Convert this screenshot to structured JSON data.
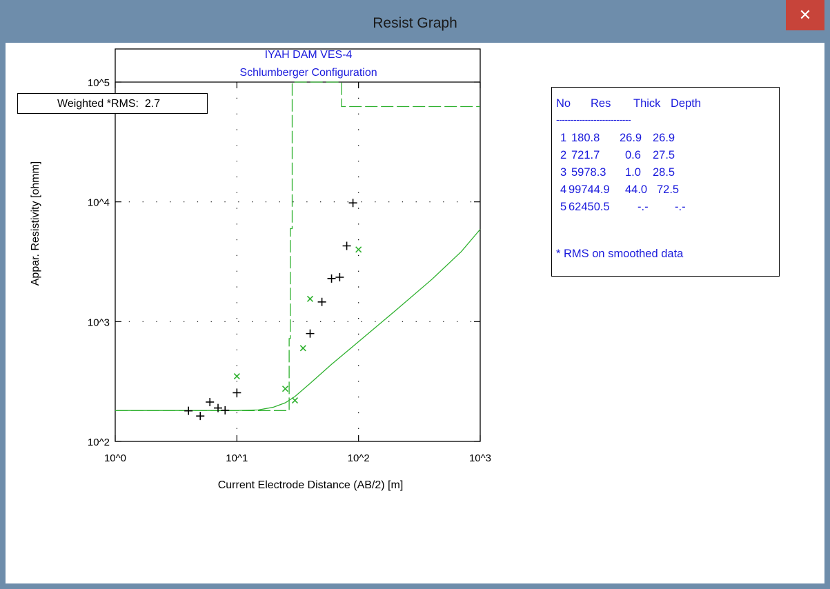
{
  "window": {
    "title": "Resist Graph",
    "close_label": "✕"
  },
  "rms": {
    "label": "Weighted *RMS:  2.7"
  },
  "chart_data": {
    "type": "scatter",
    "title": "IYAH DAM VES-4",
    "subtitle": "Schlumberger Configuration",
    "xlabel": "Current Electrode Distance (AB/2) [m]",
    "ylabel": "Appar. Resistivity [ohmm]",
    "x_scale": "log",
    "y_scale": "log",
    "xlim": [
      1,
      1000
    ],
    "ylim": [
      100,
      100000
    ],
    "x_tick_labels": [
      "10^0",
      "10^1",
      "10^2",
      "10^3"
    ],
    "y_tick_labels": [
      "10^2",
      "10^3",
      "10^4",
      "10^5"
    ],
    "grid": "dotted",
    "colors": {
      "measured": "#000000",
      "model": "#2fb12f"
    },
    "series": [
      {
        "marker": "plus",
        "color": "#000000",
        "points": [
          [
            4,
            180
          ],
          [
            5,
            163
          ],
          [
            6,
            213
          ],
          [
            7,
            190
          ],
          [
            8,
            182
          ],
          [
            10,
            255
          ],
          [
            40,
            795
          ],
          [
            50,
            1460
          ],
          [
            60,
            2290
          ],
          [
            70,
            2350
          ],
          [
            80,
            4290
          ],
          [
            90,
            9800
          ]
        ]
      },
      {
        "marker": "x",
        "color": "#2fb12f",
        "points": [
          [
            10,
            350
          ],
          [
            25,
            275
          ],
          [
            30,
            220
          ],
          [
            35,
            600
          ],
          [
            40,
            1550
          ],
          [
            100,
            4000
          ]
        ]
      },
      {
        "line": "solid",
        "color": "#2fb12f",
        "points": [
          [
            1,
            181
          ],
          [
            10,
            181
          ],
          [
            15,
            183
          ],
          [
            20,
            193
          ],
          [
            25,
            210
          ],
          [
            30,
            237
          ],
          [
            40,
            305
          ],
          [
            60,
            440
          ],
          [
            100,
            680
          ],
          [
            200,
            1230
          ],
          [
            400,
            2250
          ],
          [
            700,
            3850
          ],
          [
            1000,
            5900
          ]
        ]
      },
      {
        "line": "dashed",
        "color": "#2fb12f",
        "points": [
          [
            1,
            180.8
          ],
          [
            26.9,
            180.8
          ],
          [
            26.9,
            721.7
          ],
          [
            27.5,
            721.7
          ],
          [
            27.5,
            5978.3
          ],
          [
            28.5,
            5978.3
          ],
          [
            28.5,
            100000
          ],
          [
            72.5,
            100000
          ],
          [
            72.5,
            62450.5
          ],
          [
            1000,
            62450.5
          ]
        ]
      }
    ]
  },
  "layers_table": {
    "headers": [
      "No",
      "Res",
      "Thick",
      "Depth"
    ],
    "separator": "--------------------------",
    "rows": [
      {
        "no": "1",
        "res": "180.8",
        "thick": "26.9",
        "depth": "26.9"
      },
      {
        "no": "2",
        "res": "721.7",
        "thick": "0.6",
        "depth": "27.5"
      },
      {
        "no": "3",
        "res": "5978.3",
        "thick": "1.0",
        "depth": "28.5"
      },
      {
        "no": "4",
        "res": "99744.9",
        "thick": "44.0",
        "depth": "72.5"
      },
      {
        "no": "5",
        "res": "62450.5",
        "thick": "-.-",
        "depth": "-.-"
      }
    ],
    "note": "* RMS on smoothed data"
  }
}
